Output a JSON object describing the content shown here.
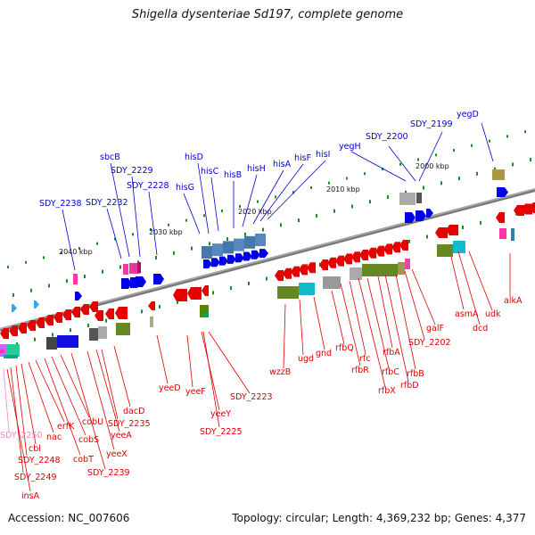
{
  "title": "Shigella dysenteriae Sd197, complete genome",
  "footer": {
    "accession": "Accession: NC_007606",
    "topology": "Topology: circular; Length: 4,369,232 bp; Genes: 4,377"
  },
  "scale_labels": [
    "2040 kbp",
    "2030 kbp",
    "2020 kbp",
    "2010 kbp",
    "2000 kbp"
  ],
  "colors": {
    "forward_strand": "#0000e6",
    "reverse_strand": "#e60000",
    "backbone": "#888888",
    "ticks": "#1e8c1e",
    "highlight_label": "#ee88cc"
  },
  "forward_genes": [
    "yegD",
    "SDY_2199",
    "SDY_2200",
    "yegH",
    "hisI",
    "hisF",
    "hisA",
    "hisH",
    "hisB",
    "hisC",
    "hisD",
    "hisG",
    "SDY_2228",
    "SDY_2229",
    "sbcB",
    "SDY_2232",
    "SDY_2238"
  ],
  "reverse_genes": [
    "alkA",
    "udk",
    "dcd",
    "asmA",
    "galF",
    "SDY_2202",
    "rfbB",
    "rfbD",
    "rfbA",
    "rfbC",
    "rfbX",
    "rfc",
    "rfbR",
    "rfbQ",
    "gnd",
    "ugd",
    "wzzB",
    "SDY_2223",
    "yeeY",
    "SDY_2225",
    "yeeF",
    "yeeD",
    "dacD",
    "SDY_2235",
    "yeeA",
    "yeeX",
    "SDY_2239",
    "cobU",
    "cobS",
    "cobT",
    "erfK",
    "nac",
    "cbl",
    "SDY_2248",
    "SDY_2249",
    "insA",
    "SDY_2250"
  ]
}
